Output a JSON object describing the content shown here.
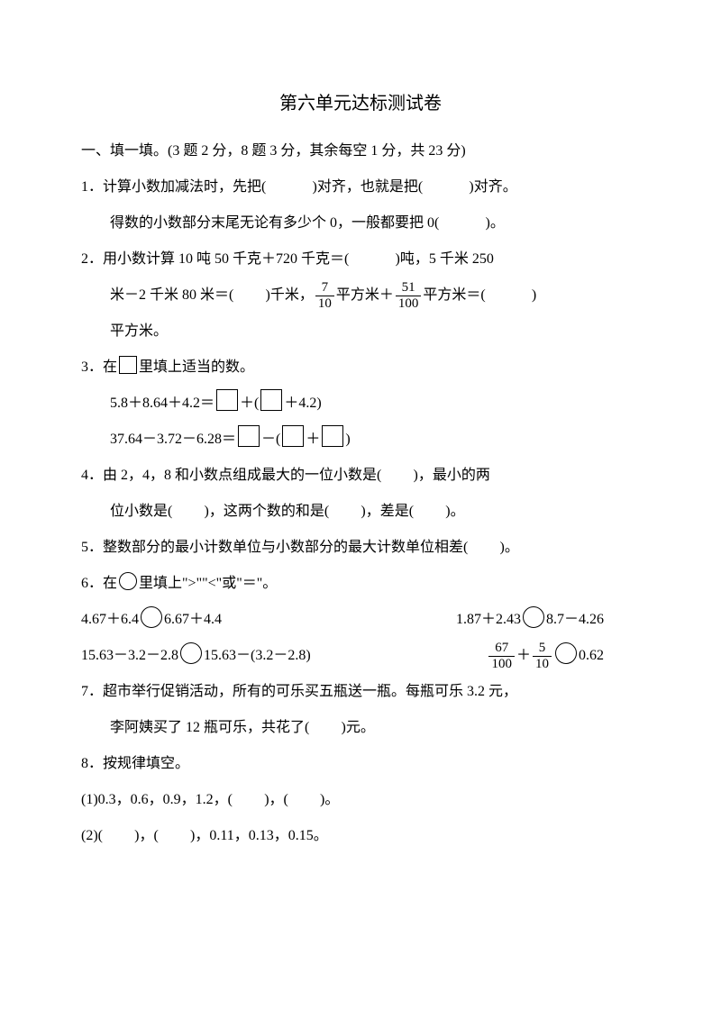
{
  "title": "第六单元达标测试卷",
  "section1": {
    "heading": "一、填一填。(3 题 2 分，8 题 3 分，其余每空 1 分，共 23 分)",
    "q1": {
      "l1_a": "1．计算小数加减法时，先把(",
      "l1_b": ")对齐，也就是把(",
      "l1_c": ")对齐。",
      "l2_a": "得数的小数部分末尾无论有多少个 0，一般都要把 0(",
      "l2_b": ")。"
    },
    "q2": {
      "l1_a": "2．用小数计算 10 吨 50 千克＋720 千克＝(",
      "l1_b": ")吨，5 千米 250",
      "l2_a": "米－2 千米 80 米＝(",
      "l2_b": ")千米，",
      "frac1_num": "7",
      "frac1_den": "10",
      "mid1": "平方米＋",
      "frac2_num": "51",
      "frac2_den": "100",
      "l2_c": "平方米＝(",
      "l2_d": ")",
      "l3": "平方米。"
    },
    "q3": {
      "l1": "3．在",
      "l1_b": "里填上适当的数。",
      "eq1_a": "5.8＋8.64＋4.2＝",
      "eq1_b": "＋(",
      "eq1_c": "＋4.2)",
      "eq2_a": "37.64－3.72－6.28＝",
      "eq2_b": "－(",
      "eq2_c": "＋",
      "eq2_d": ")"
    },
    "q4": {
      "l1_a": "4．由 2，4，8 和小数点组成最大的一位小数是(",
      "l1_b": ")，最小的两",
      "l2_a": "位小数是(",
      "l2_b": ")，这两个数的和是(",
      "l2_c": ")，差是(",
      "l2_d": ")。"
    },
    "q5": {
      "a": "5．整数部分的最小计数单位与小数部分的最大计数单位相差(",
      "b": ")。"
    },
    "q6": {
      "l1": "6．在",
      "l1_b": "里填上\">\"\"<\"或\"＝\"。",
      "r1_left_a": "4.67＋6.4",
      "r1_left_b": "6.67＋4.4",
      "r1_right_a": "1.87＋2.43",
      "r1_right_b": "8.7－4.26",
      "r2_left_a": "15.63－3.2－2.8",
      "r2_left_b": "15.63－(3.2－2.8)",
      "r2_frac1_num": "67",
      "r2_frac1_den": "100",
      "r2_plus": "＋",
      "r2_frac2_num": "5",
      "r2_frac2_den": "10",
      "r2_right_b": "0.62"
    },
    "q7": {
      "l1": "7．超市举行促销活动，所有的可乐买五瓶送一瓶。每瓶可乐 3.2 元，",
      "l2_a": "李阿姨买了 12 瓶可乐，共花了(",
      "l2_b": ")元。"
    },
    "q8": {
      "l1": "8．按规律填空。",
      "s1_a": "(1)0.3，0.6，0.9，1.2，(",
      "s1_b": ")，(",
      "s1_c": ")。",
      "s2_a": "(2)(",
      "s2_b": ")，(",
      "s2_c": ")，0.11，0.13，0.15。"
    }
  }
}
